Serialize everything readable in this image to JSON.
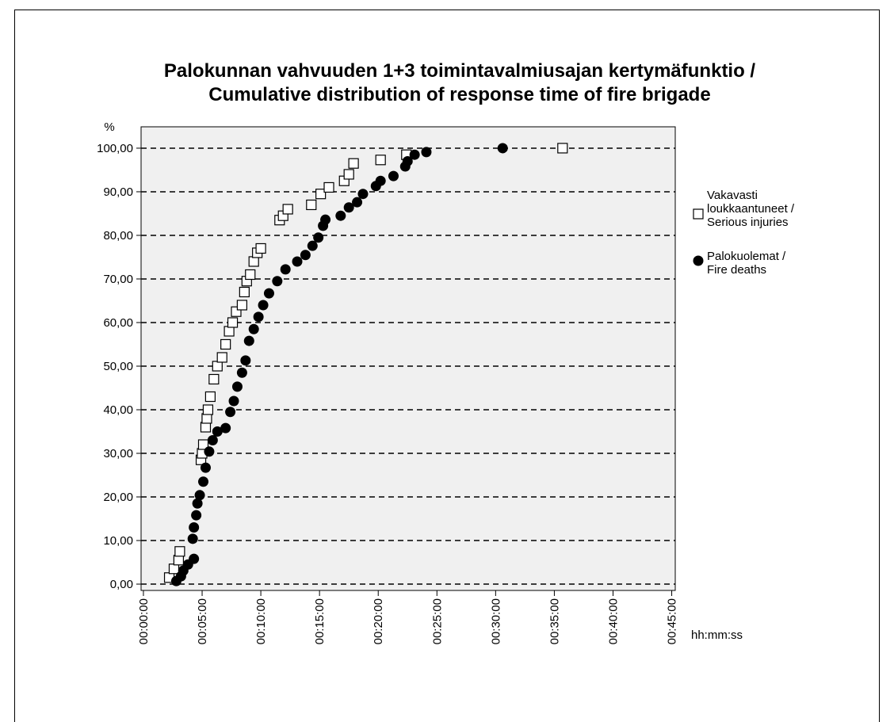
{
  "chart_data": {
    "type": "scatter",
    "title": "Palokunnan vahvuuden 1+3 toimintavalmiusajan kertymäfunktio /",
    "subtitle": "Cumulative distribution of response time of fire brigade",
    "y_label": "%",
    "x_label": "hh:mm:ss",
    "xlim": [
      -0.2,
      45.3
    ],
    "ylim": [
      -1.45,
      104.9
    ],
    "xticks": [
      {
        "value": 0,
        "label": "00:00:00"
      },
      {
        "value": 5,
        "label": "00:05:00"
      },
      {
        "value": 10,
        "label": "00:10:00"
      },
      {
        "value": 15,
        "label": "00:15:00"
      },
      {
        "value": 20,
        "label": "00:20:00"
      },
      {
        "value": 25,
        "label": "00:25:00"
      },
      {
        "value": 30,
        "label": "00:30:00"
      },
      {
        "value": 35,
        "label": "00:35:00"
      },
      {
        "value": 40,
        "label": "00:40:00"
      },
      {
        "value": 45,
        "label": "00:45:00"
      }
    ],
    "yticks": [
      {
        "value": 0,
        "label": "0,00"
      },
      {
        "value": 10,
        "label": "10,00"
      },
      {
        "value": 20,
        "label": "20,00"
      },
      {
        "value": 30,
        "label": "30,00"
      },
      {
        "value": 40,
        "label": "40,00"
      },
      {
        "value": 50,
        "label": "50,00"
      },
      {
        "value": 60,
        "label": "60,00"
      },
      {
        "value": 70,
        "label": "70,00"
      },
      {
        "value": 80,
        "label": "80,00"
      },
      {
        "value": 90,
        "label": "90,00"
      },
      {
        "value": 100,
        "label": "100,00"
      }
    ],
    "grid": true,
    "series": [
      {
        "name": "Vakavasti loukkaantuneet / Serious injuries",
        "color": "#000000",
        "marker": "square",
        "x": [
          2.2,
          2.6,
          3.0,
          3.1,
          4.9,
          5.0,
          5.1,
          5.3,
          5.4,
          5.5,
          5.7,
          6.0,
          6.3,
          6.7,
          7.0,
          7.3,
          7.6,
          7.9,
          8.4,
          8.6,
          8.8,
          9.1,
          9.4,
          9.7,
          10.0,
          11.6,
          11.9,
          12.3,
          14.3,
          15.1,
          15.8,
          17.1,
          17.5,
          17.9,
          20.2,
          22.4,
          35.7
        ],
        "values": [
          1.5,
          3.5,
          5.5,
          7.5,
          28.5,
          30,
          32,
          36,
          38,
          40,
          43,
          47,
          50,
          52,
          55,
          58,
          60,
          62.5,
          64,
          67,
          69.5,
          71,
          74,
          76,
          77,
          83.5,
          84.5,
          86,
          87,
          89.5,
          91,
          92.5,
          94,
          96.5,
          97.3,
          98.5,
          100
        ]
      },
      {
        "name": "Palokuolemat / Fire deaths",
        "color": "#000000",
        "marker": "circle",
        "x": [
          2.8,
          3.2,
          3.4,
          3.8,
          4.3,
          4.2,
          4.3,
          4.5,
          4.6,
          4.8,
          5.1,
          5.3,
          5.6,
          5.9,
          6.3,
          7.0,
          7.4,
          7.7,
          8.0,
          8.4,
          8.7,
          9.0,
          9.4,
          9.8,
          10.2,
          10.7,
          11.4,
          12.1,
          13.1,
          13.8,
          14.4,
          14.9,
          15.3,
          15.5,
          16.8,
          17.5,
          18.2,
          18.7,
          19.8,
          20.2,
          21.3,
          22.3,
          22.5,
          23.1,
          24.1,
          30.6
        ],
        "values": [
          0.7,
          1.8,
          3.1,
          4.5,
          5.8,
          10.4,
          13,
          15.8,
          18.5,
          20.4,
          23.5,
          26.7,
          30.4,
          33,
          35,
          35.8,
          39.5,
          42,
          45.3,
          48.5,
          51.3,
          55.8,
          58.5,
          61.3,
          64,
          66.7,
          69.5,
          72.2,
          74,
          75.5,
          77.6,
          79.5,
          82.2,
          83.6,
          84.5,
          86.4,
          87.6,
          89.5,
          91.3,
          92.5,
          93.6,
          95.8,
          97,
          98.5,
          99.1,
          100
        ]
      }
    ]
  }
}
